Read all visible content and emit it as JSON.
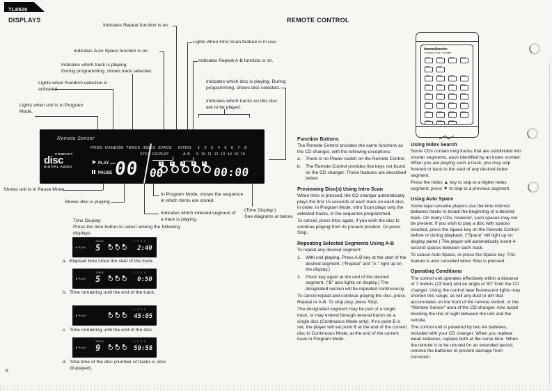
{
  "page": {
    "model": "TL8500",
    "left_heading": "DISPLAYS",
    "right_heading": "REMOTE CONTROL",
    "page_number": "6"
  },
  "display_panel": {
    "remote_sensor": "Remote Sensor",
    "logo": {
      "compact": "COMPACT",
      "disc": "disc",
      "digital": "DIGITAL AUDIO"
    },
    "labels": {
      "prog": "PROG",
      "random": "RANDOM",
      "track": "TRACK",
      "index": "INDEX",
      "space": "SPACE",
      "intro": "INTRO",
      "step": "STEP",
      "repeat": "REPEAT",
      "ab": "A-B"
    },
    "numbers_row1": "1 2 3 4 5 6 7 8",
    "numbers_row2": "9 10 11 12 13 14 15 16",
    "play": "PLAY",
    "pause": "PAUSE",
    "track_digits": "00",
    "index_digits": "00",
    "disc_numbers": [
      "1",
      "2",
      "3",
      "4",
      "5"
    ],
    "time": "00:00"
  },
  "callouts": [
    "Indicates Repeat function is on.",
    "Lights when Intro Scan feature is in use.",
    "Indicates Auto Space function is on.",
    "Indicates Repeat A-B function is on.",
    "Indicates which track is playing.\nDuring programming, shows track selected.",
    "Lights when Random selection is\nactivated.",
    "Lights when unit is in Program\nMode.",
    "Indicates which disc is playing.  During\nprogramming, shows disc selected.",
    "Indicates which tracks on this disc\nare to be played.",
    "Shows unit is in Pause Mode.",
    "Shows disc is playing.",
    "In Program Mode, shows the sequence\nin which items are stored.",
    "Indicates which indexed segment of\na track is playing.",
    "(Time Display:)\nSee diagrams at below."
  ],
  "time_display_section": {
    "title": "Time Display:",
    "intro": "Press the time button to select among the following displays:",
    "fig_play_label": "PLAY",
    "fig_track_label": "TRACK",
    "fig_numbers": "1 2 3 4",
    "figures": [
      {
        "marker": "a.",
        "track": "5",
        "time": "2:40",
        "caption": "Elapsed time since the start of the track."
      },
      {
        "marker": "b.",
        "track": "5",
        "time": "0:50",
        "caption": "Time remaining until the end of the track."
      },
      {
        "marker": "c.",
        "track": "",
        "time": "45:05",
        "caption": "Time remaining until the end of the disc."
      },
      {
        "marker": "d.",
        "track": "9",
        "time": "59:58",
        "caption": "Total time of the disc (number of tracks is also displayed)."
      }
    ]
  },
  "remote": {
    "brand": "harman/kardon",
    "subtitle": "Compact Disc Changer",
    "button_rows": [
      4,
      2,
      4,
      4,
      4,
      4,
      4,
      3
    ]
  },
  "columns": {
    "left": {
      "blocks": [
        {
          "type": "h",
          "text": "Function Buttons"
        },
        {
          "type": "p",
          "text": "The Remote Control provides the same functions as the CD changer, with the following exceptions:"
        },
        {
          "type": "li",
          "marker": "a.",
          "text": "There is no Power switch on the Remote Control."
        },
        {
          "type": "li",
          "marker": "b.",
          "text": "The Remote Control provides five keys not found on the CD changer.  These features are described below."
        },
        {
          "type": "h",
          "text": "Previewing Disc(s) Using Intro Scan"
        },
        {
          "type": "p",
          "text": "When Intro is pressed, the CD changer automatically plays the first 15 seconds of each track on each disc, in order.  In Program Mode, Intro Scan plays only the selected tracks, in the sequence programmed."
        },
        {
          "type": "p",
          "text": "To cancel, press Intro again, if you wish the disc to continue playing from its present position.  Or press Stop."
        },
        {
          "type": "h",
          "text": "Repeating Selected Segments Using A-B"
        },
        {
          "type": "p",
          "text": "To repeat any desired segment:"
        },
        {
          "type": "li",
          "marker": "1.",
          "text": "With unit playing, Press A-B key at the start of the desired segment.  (“Repeat” and “A-” light up on the display.)"
        },
        {
          "type": "li",
          "marker": "2.",
          "text": "Press key again at the end of the desired segment.  (“B” also lights on display.)  The designated section will be repeated continuously."
        },
        {
          "type": "p",
          "text": "To cancel repeat and continue playing the disc, press Repeat or A-B.  To stop play, press Stop."
        },
        {
          "type": "p",
          "text": "The designated segment may be part of a single track, or may extend through several tracks on a single disc (Continuous Mode only).  If no point B is set, the player will set point B at the end of the current disc in Continuous Mode;  at the end of the current track in Program Mode."
        }
      ]
    },
    "right": {
      "blocks": [
        {
          "type": "h",
          "text": "Using Index Search"
        },
        {
          "type": "p",
          "text": "Some CDs contain long tracks that are subdivided into shorter segments, each identified by an Index number.  When you are playing such a track, you may skip forward or back to the start of any desired index segment."
        },
        {
          "type": "p",
          "text": "Press the Index ▲ key to skip to a higher index segment;  press ▼ to skip to a previous segment."
        },
        {
          "type": "h",
          "text": "Using Auto Space"
        },
        {
          "type": "p",
          "text": "Some tape cassette players use the time interval between tracks to locate the beginning of a desired track.  On many CDs, however, such spaces may not be present.  If you wish to play a disc with spaces inserted, press the Space key on the Remote Control before or during playback.  (“Space” will light up on display panel.)  The player will automatically insert 4-second spaces between each track."
        },
        {
          "type": "p",
          "text": "To cancel Auto Space, re-press the Space key.  This feature is also canceled when Stop is pressed."
        },
        {
          "type": "h",
          "text": "Operating Conditions"
        },
        {
          "type": "p",
          "text": "The control unit operates effectively within a distance of 7 meters (23 feet) and an angle of 30° from the CD changer.  Using the control near fluorescent lights may shorten this range, as will any dust or dirt that accumulates on the front of the remote control, or the “Remote Sensor” area of the CD changer.  Also avoid blocking the line of sight between the unit and the remote."
        },
        {
          "type": "p",
          "text": "The control unit is powered by two AA batteries, included with your CD changer.  When you replace weak batteries, replace both at the same time.  When the remote is to be unused for an extended period, remove the batteries to prevent damage from corrosion."
        }
      ]
    }
  }
}
